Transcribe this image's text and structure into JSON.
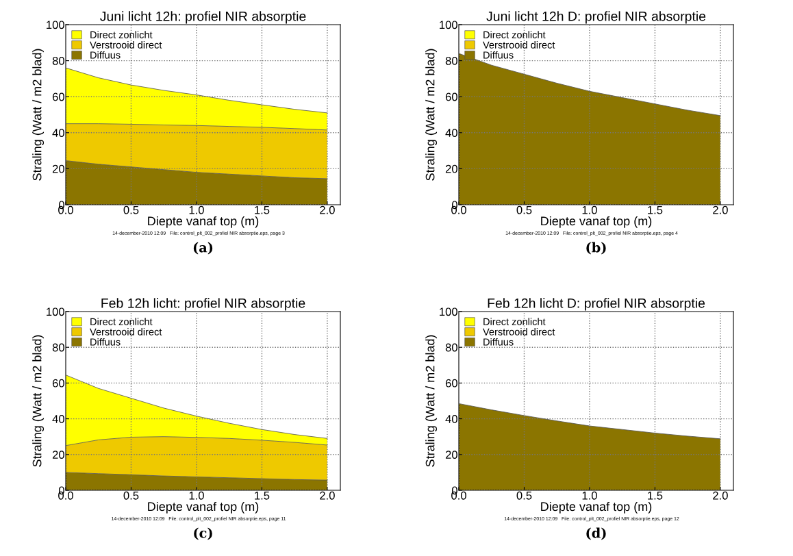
{
  "chart_data": [
    {
      "type": "area",
      "stacked": true,
      "title": "Juni licht 12h: profiel NIR absorptie",
      "xlabel": "Diepte vanaf top (m)",
      "ylabel": "Straling (Watt / m2 blad)",
      "x": [
        0,
        0.25,
        0.5,
        0.75,
        1.0,
        1.25,
        1.5,
        1.75,
        2.0
      ],
      "series": [
        {
          "name": "Diffuus",
          "color": "#8b7500",
          "values": [
            24.5,
            22.5,
            21,
            19.5,
            18,
            17,
            16,
            15,
            14.5
          ]
        },
        {
          "name": "Verstrooid direct",
          "color": "#eec900",
          "values": [
            20.5,
            22.5,
            23.7,
            24.8,
            26,
            26.5,
            27,
            27.3,
            27
          ]
        },
        {
          "name": "Direct zonlicht",
          "color": "#ffff00",
          "values": [
            31,
            25.5,
            21.8,
            19.2,
            17,
            14.5,
            12.5,
            10.7,
            9.5
          ]
        }
      ],
      "xlim": [
        0,
        2.1
      ],
      "xticks": [
        {
          "value": 0,
          "label": "0.0"
        },
        {
          "value": 0.5,
          "label": "0.5"
        },
        {
          "value": 1,
          "label": "1.0"
        },
        {
          "value": 1.5,
          "label": "1.5"
        },
        {
          "value": 2,
          "label": "2.0"
        }
      ],
      "ylim": [
        0,
        100
      ],
      "yticks": [
        0,
        20,
        40,
        60,
        80,
        100
      ],
      "grid": true,
      "legend": "top left",
      "annotations": [
        "14-december-2010 12:09   File: control_plt_002_profiel NIR absorptie.eps, page 3",
        "(a)"
      ]
    },
    {
      "type": "area",
      "stacked": true,
      "title": "Juni licht 12h D: profiel NIR absorptie",
      "xlabel": "Diepte vanaf top (m)",
      "ylabel": "Straling (Watt / m2 blad)",
      "x": [
        0,
        0.25,
        0.5,
        0.75,
        1.0,
        1.25,
        1.5,
        1.75,
        2.0
      ],
      "series": [
        {
          "name": "Diffuus",
          "color": "#8b7500",
          "values": [
            84,
            77.5,
            72.5,
            67.5,
            63,
            59.5,
            56,
            52.5,
            49.5
          ]
        },
        {
          "name": "Verstrooid direct",
          "color": "#eec900",
          "values": [
            null,
            null,
            null,
            null,
            null,
            null,
            null,
            null,
            null
          ]
        },
        {
          "name": "Direct zonlicht",
          "color": "#ffff00",
          "values": [
            null,
            null,
            null,
            null,
            null,
            null,
            null,
            null,
            null
          ]
        }
      ],
      "xlim": [
        0,
        2.1
      ],
      "xticks": [
        {
          "value": 0,
          "label": "0.0"
        },
        {
          "value": 0.5,
          "label": "0.5"
        },
        {
          "value": 1,
          "label": "1.0"
        },
        {
          "value": 1.5,
          "label": "1.5"
        },
        {
          "value": 2,
          "label": "2.0"
        }
      ],
      "ylim": [
        0,
        100
      ],
      "yticks": [
        0,
        20,
        40,
        60,
        80,
        100
      ],
      "grid": true,
      "legend": "top left",
      "annotations": [
        "14-december-2010 12:09   File: control_plt_002_profiel NIR absorptie.eps, page 4",
        "(b)"
      ]
    },
    {
      "type": "area",
      "stacked": true,
      "title": "Feb 12h licht: profiel NIR absorptie",
      "xlabel": "Diepte vanaf top (m)",
      "ylabel": "Straling (Watt / m2 blad)",
      "x": [
        0,
        0.25,
        0.5,
        0.75,
        1.0,
        1.25,
        1.5,
        1.75,
        2.0
      ],
      "series": [
        {
          "name": "Diffuus",
          "color": "#8b7500",
          "values": [
            10,
            9.3,
            8.7,
            8,
            7.5,
            7,
            6.5,
            6,
            5.7
          ]
        },
        {
          "name": "Verstrooid direct",
          "color": "#eec900",
          "values": [
            15,
            18.9,
            21,
            22,
            22.1,
            22,
            21.5,
            20.8,
            19.6
          ]
        },
        {
          "name": "Direct zonlicht",
          "color": "#ffff00",
          "values": [
            39.5,
            28.8,
            21.8,
            16,
            11.9,
            8.5,
            6,
            4.4,
            3.7
          ]
        }
      ],
      "xlim": [
        0,
        2.1
      ],
      "xticks": [
        {
          "value": 0,
          "label": "0.0"
        },
        {
          "value": 0.5,
          "label": "0.5"
        },
        {
          "value": 1,
          "label": "1.0"
        },
        {
          "value": 1.5,
          "label": "1.5"
        },
        {
          "value": 2,
          "label": "2.0"
        }
      ],
      "ylim": [
        0,
        100
      ],
      "yticks": [
        0,
        20,
        40,
        60,
        80,
        100
      ],
      "grid": true,
      "legend": "top left",
      "annotations": [
        "14-december-2010 12:09   File: control_plt_002_profiel NIR absorptie.eps, page 11",
        "(c)"
      ]
    },
    {
      "type": "area",
      "stacked": true,
      "title": "Feb 12h licht D: profiel NIR absorptie",
      "xlabel": "Diepte vanaf top (m)",
      "ylabel": "Straling (Watt / m2 blad)",
      "x": [
        0,
        0.25,
        0.5,
        0.75,
        1.0,
        1.25,
        1.5,
        1.75,
        2.0
      ],
      "series": [
        {
          "name": "Diffuus",
          "color": "#8b7500",
          "values": [
            48.5,
            45,
            41.8,
            38.8,
            36,
            34,
            32,
            30.3,
            28.8
          ]
        },
        {
          "name": "Verstrooid direct",
          "color": "#eec900",
          "values": [
            null,
            null,
            null,
            null,
            null,
            null,
            null,
            null,
            null
          ]
        },
        {
          "name": "Direct zonlicht",
          "color": "#ffff00",
          "values": [
            null,
            null,
            null,
            null,
            null,
            null,
            null,
            null,
            null
          ]
        }
      ],
      "xlim": [
        0,
        2.1
      ],
      "xticks": [
        {
          "value": 0,
          "label": "0.0"
        },
        {
          "value": 0.5,
          "label": "0.5"
        },
        {
          "value": 1,
          "label": "1.0"
        },
        {
          "value": 1.5,
          "label": "1.5"
        },
        {
          "value": 2,
          "label": "2.0"
        }
      ],
      "ylim": [
        0,
        100
      ],
      "yticks": [
        0,
        20,
        40,
        60,
        80,
        100
      ],
      "grid": true,
      "legend": "top left",
      "annotations": [
        "14-december-2010 12:09   File: control_plt_002_profiel NIR absorptie.eps, page 12",
        "(d)"
      ]
    }
  ]
}
